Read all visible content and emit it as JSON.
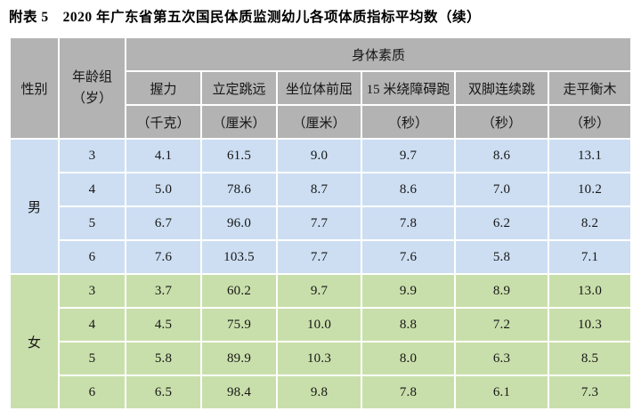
{
  "title": "附表 5　2020 年广东省第五次国民体质监测幼儿各项体质指标平均数（续）",
  "table": {
    "header": {
      "gender": "性别",
      "age_group_line1": "年龄组",
      "age_group_line2": "（岁）",
      "group_title": "身体素质",
      "columns": [
        {
          "name": "握力",
          "unit": "（千克）"
        },
        {
          "name": "立定跳远",
          "unit": "（厘米）"
        },
        {
          "name": "坐位体前屈",
          "unit": "（厘米）"
        },
        {
          "name": "15 米绕障碍跑",
          "unit": "（秒）"
        },
        {
          "name": "双脚连续跳",
          "unit": "（秒）"
        },
        {
          "name": "走平衡木",
          "unit": "（秒）"
        }
      ]
    },
    "sections": [
      {
        "gender": "男",
        "bg_color": "#cddef2",
        "rows": [
          {
            "age": "3",
            "values": [
              "4.1",
              "61.5",
              "9.0",
              "9.7",
              "8.6",
              "13.1"
            ]
          },
          {
            "age": "4",
            "values": [
              "5.0",
              "78.6",
              "8.7",
              "8.6",
              "7.0",
              "10.2"
            ]
          },
          {
            "age": "5",
            "values": [
              "6.7",
              "96.0",
              "7.7",
              "7.8",
              "6.2",
              "8.2"
            ]
          },
          {
            "age": "6",
            "values": [
              "7.6",
              "103.5",
              "7.7",
              "7.6",
              "5.8",
              "7.1"
            ]
          }
        ]
      },
      {
        "gender": "女",
        "bg_color": "#c9dfab",
        "rows": [
          {
            "age": "3",
            "values": [
              "3.7",
              "60.2",
              "9.7",
              "9.9",
              "8.9",
              "13.0"
            ]
          },
          {
            "age": "4",
            "values": [
              "4.5",
              "75.9",
              "10.0",
              "8.8",
              "7.2",
              "10.3"
            ]
          },
          {
            "age": "5",
            "values": [
              "5.8",
              "89.9",
              "10.3",
              "8.0",
              "6.3",
              "8.5"
            ]
          },
          {
            "age": "6",
            "values": [
              "6.5",
              "98.4",
              "9.8",
              "7.8",
              "6.1",
              "7.3"
            ]
          }
        ]
      }
    ]
  },
  "colors": {
    "header_bg": "#b3b3b3",
    "male_bg": "#cddef2",
    "female_bg": "#c9dfab",
    "gridline": "#ffffff",
    "text": "#161616"
  }
}
